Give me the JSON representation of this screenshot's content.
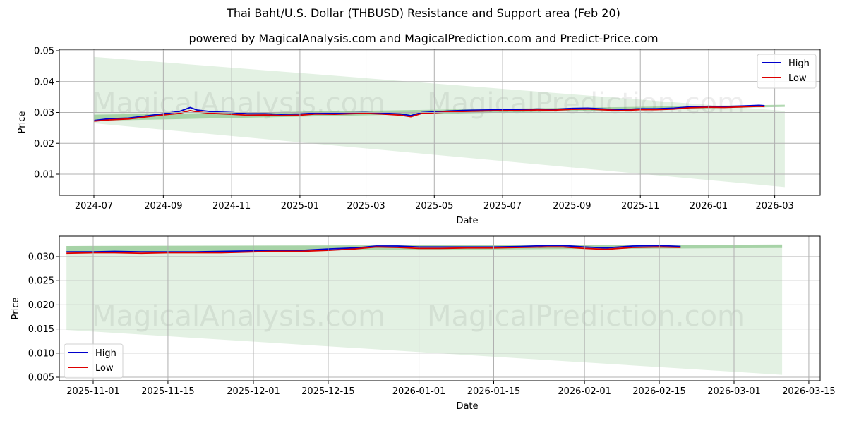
{
  "title": "Thai Baht/U.S. Dollar (THBUSD) Resistance and Support area (Feb 20)",
  "subtitle": "powered by MagicalAnalysis.com and MagicalPrediction.com and Predict-Price.com",
  "watermarks": [
    "MagicalAnalysis.com",
    "MagicalPrediction.com"
  ],
  "colors": {
    "high": "#0000cc",
    "low": "#dd0000",
    "band_dark": "#7fbf7f",
    "band_light": "#d9ecd9",
    "grid": "#b0b0b0"
  },
  "chart_data": [
    {
      "type": "line",
      "title": "Top panel: full history with resistance/support projection",
      "xlabel": "Date",
      "ylabel": "Price",
      "ylim": [
        0.003,
        0.0505
      ],
      "grid": true,
      "legend_position": "upper right",
      "legend": [
        "High",
        "Low"
      ],
      "x_ticks": [
        "2024-07",
        "2024-09",
        "2024-11",
        "2025-01",
        "2025-03",
        "2025-05",
        "2025-07",
        "2025-09",
        "2025-11",
        "2026-01",
        "2026-03"
      ],
      "y_ticks": [
        "0.01",
        "0.02",
        "0.03",
        "0.04",
        "0.05"
      ],
      "x": [
        "2024-07-01",
        "2024-07-15",
        "2024-08-01",
        "2024-08-15",
        "2024-09-01",
        "2024-09-15",
        "2024-09-25",
        "2024-10-01",
        "2024-10-15",
        "2024-11-01",
        "2024-11-15",
        "2024-12-01",
        "2024-12-15",
        "2025-01-01",
        "2025-01-15",
        "2025-02-01",
        "2025-02-15",
        "2025-03-01",
        "2025-03-15",
        "2025-04-01",
        "2025-04-10",
        "2025-04-20",
        "2025-05-01",
        "2025-05-15",
        "2025-06-01",
        "2025-06-15",
        "2025-07-01",
        "2025-07-15",
        "2025-08-01",
        "2025-08-15",
        "2025-09-01",
        "2025-09-15",
        "2025-10-01",
        "2025-10-15",
        "2025-11-01",
        "2025-11-15",
        "2025-12-01",
        "2025-12-15",
        "2026-01-01",
        "2026-01-15",
        "2026-02-01",
        "2026-02-15",
        "2026-02-20"
      ],
      "series": [
        {
          "name": "High",
          "values": [
            0.0274,
            0.028,
            0.0282,
            0.0288,
            0.0296,
            0.0303,
            0.0316,
            0.0308,
            0.0302,
            0.03,
            0.0296,
            0.0296,
            0.0294,
            0.0295,
            0.0298,
            0.0297,
            0.0299,
            0.03,
            0.0298,
            0.0295,
            0.029,
            0.03,
            0.0302,
            0.0305,
            0.0307,
            0.0308,
            0.0309,
            0.0309,
            0.0311,
            0.031,
            0.0313,
            0.0314,
            0.0311,
            0.0309,
            0.0312,
            0.0312,
            0.0314,
            0.0318,
            0.032,
            0.0319,
            0.0321,
            0.0323,
            0.0322
          ]
        },
        {
          "name": "Low",
          "values": [
            0.0272,
            0.0276,
            0.0279,
            0.0285,
            0.0292,
            0.0297,
            0.0306,
            0.0302,
            0.0297,
            0.0294,
            0.0291,
            0.0292,
            0.029,
            0.0291,
            0.0295,
            0.0294,
            0.0296,
            0.0297,
            0.0295,
            0.0291,
            0.0286,
            0.0297,
            0.0299,
            0.0302,
            0.0304,
            0.0305,
            0.0306,
            0.0306,
            0.0308,
            0.0307,
            0.031,
            0.0311,
            0.0308,
            0.0306,
            0.0309,
            0.0309,
            0.0311,
            0.0315,
            0.0317,
            0.0316,
            0.0318,
            0.032,
            0.0319
          ]
        }
      ],
      "resistance_band": {
        "x_start": "2024-07-01",
        "x_end": "2026-03-10",
        "upper_start": 0.0293,
        "lower_start": 0.0273,
        "upper_end": 0.0325,
        "lower_end": 0.0318
      },
      "projection_area": {
        "x_start": "2024-07-01",
        "x_end": "2026-03-10",
        "top_start": 0.048,
        "bottom_start": 0.0265,
        "top_end": 0.0305,
        "bottom_end": 0.0058
      }
    },
    {
      "type": "line",
      "title": "Bottom panel: recent zoom",
      "xlabel": "Date",
      "ylabel": "Price",
      "ylim": [
        0.0042,
        0.0343
      ],
      "grid": true,
      "legend_position": "lower left",
      "legend": [
        "High",
        "Low"
      ],
      "x_ticks": [
        "2025-11-01",
        "2025-11-15",
        "2025-12-01",
        "2025-12-15",
        "2026-01-01",
        "2026-01-15",
        "2026-02-01",
        "2026-02-15",
        "2026-03-01",
        "2026-03-15"
      ],
      "y_ticks": [
        "0.005",
        "0.010",
        "0.015",
        "0.020",
        "0.025",
        "0.030"
      ],
      "x": [
        "2025-10-27",
        "2025-11-01",
        "2025-11-05",
        "2025-11-10",
        "2025-11-15",
        "2025-11-20",
        "2025-11-25",
        "2025-12-01",
        "2025-12-05",
        "2025-12-10",
        "2025-12-15",
        "2025-12-20",
        "2025-12-24",
        "2025-12-28",
        "2026-01-01",
        "2026-01-05",
        "2026-01-10",
        "2026-01-15",
        "2026-01-20",
        "2026-01-25",
        "2026-01-28",
        "2026-02-01",
        "2026-02-05",
        "2026-02-10",
        "2026-02-15",
        "2026-02-19"
      ],
      "series": [
        {
          "name": "High",
          "values": [
            0.031,
            0.031,
            0.0311,
            0.031,
            0.031,
            0.031,
            0.0311,
            0.0312,
            0.0313,
            0.0313,
            0.0316,
            0.0318,
            0.0322,
            0.0322,
            0.032,
            0.032,
            0.032,
            0.032,
            0.0321,
            0.0323,
            0.0323,
            0.032,
            0.0318,
            0.0322,
            0.0323,
            0.0321
          ]
        },
        {
          "name": "Low",
          "values": [
            0.0307,
            0.0308,
            0.0308,
            0.0307,
            0.0308,
            0.0308,
            0.0308,
            0.031,
            0.0311,
            0.0311,
            0.0313,
            0.0316,
            0.032,
            0.0319,
            0.0317,
            0.0317,
            0.0318,
            0.0318,
            0.0319,
            0.032,
            0.032,
            0.0317,
            0.0315,
            0.0319,
            0.032,
            0.0319
          ]
        }
      ],
      "resistance_band": {
        "x_start": "2025-10-27",
        "x_end": "2026-03-10",
        "upper_start": 0.0322,
        "lower_start": 0.031,
        "upper_end": 0.0325,
        "lower_end": 0.0318
      },
      "projection_area": {
        "x_start": "2025-10-27",
        "x_end": "2026-03-10",
        "top_start": 0.0322,
        "bottom_start": 0.0148,
        "top_end": 0.0325,
        "bottom_end": 0.0055
      }
    }
  ]
}
